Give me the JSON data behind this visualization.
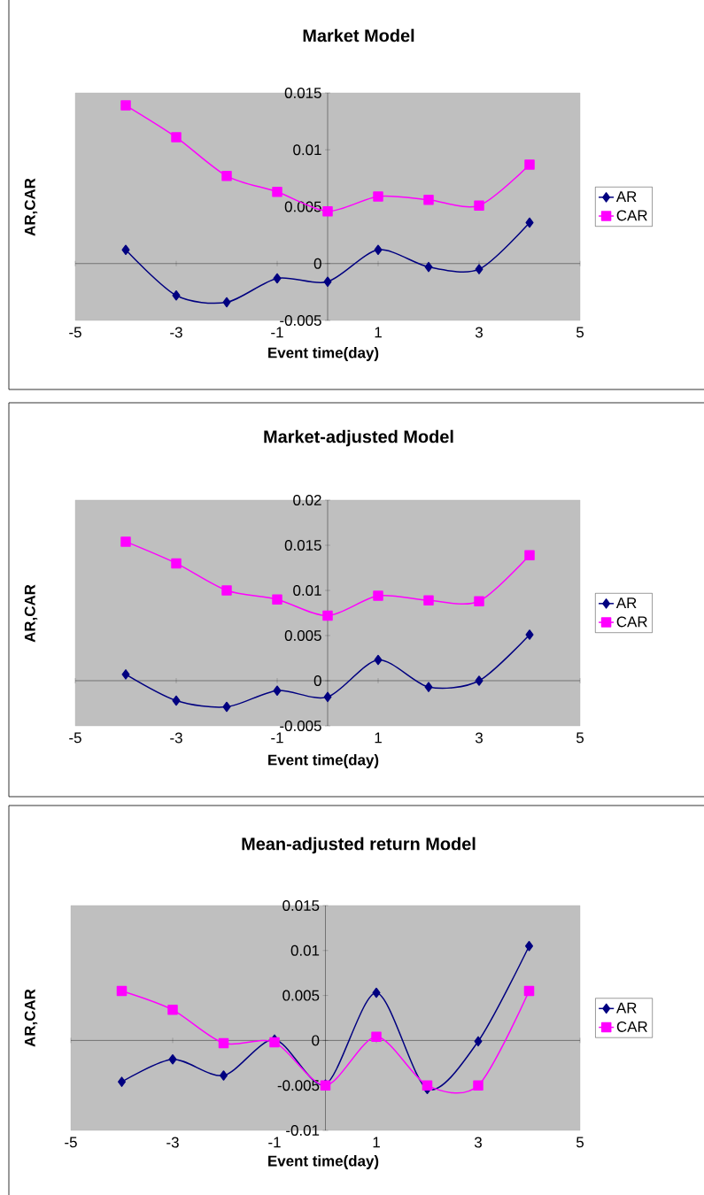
{
  "chart_data": [
    {
      "type": "line",
      "title": "Market Model",
      "xlabel": "Event time(day)",
      "ylabel": "AR,CAR",
      "x": [
        -4,
        -3,
        -2,
        -1,
        0,
        1,
        2,
        3,
        4
      ],
      "xlim": [
        -5,
        5
      ],
      "xticks": [
        -5,
        -3,
        -1,
        1,
        3,
        5
      ],
      "ylim": [
        -0.005,
        0.015
      ],
      "yticks": [
        -0.005,
        0,
        0.005,
        0.01,
        0.015
      ],
      "legend": "right",
      "series": [
        {
          "name": "AR",
          "color": "#000080",
          "marker": "diamond",
          "values": [
            0.0012,
            -0.0028,
            -0.0034,
            -0.0013,
            -0.0016,
            0.0012,
            -0.0003,
            -0.0005,
            0.0036
          ]
        },
        {
          "name": "CAR",
          "color": "#ff00ff",
          "marker": "square",
          "values": [
            0.0139,
            0.0111,
            0.0077,
            0.0063,
            0.0046,
            0.0059,
            0.0056,
            0.0051,
            0.0087
          ]
        }
      ]
    },
    {
      "type": "line",
      "title": "Market-adjusted Model",
      "xlabel": "Event time(day)",
      "ylabel": "AR,CAR",
      "x": [
        -4,
        -3,
        -2,
        -1,
        0,
        1,
        2,
        3,
        4
      ],
      "xlim": [
        -5,
        5
      ],
      "xticks": [
        -5,
        -3,
        -1,
        1,
        3,
        5
      ],
      "ylim": [
        -0.005,
        0.02
      ],
      "yticks": [
        -0.005,
        0,
        0.005,
        0.01,
        0.015,
        0.02
      ],
      "legend": "right",
      "series": [
        {
          "name": "AR",
          "color": "#000080",
          "marker": "diamond",
          "values": [
            0.0007,
            -0.0022,
            -0.0029,
            -0.0011,
            -0.0018,
            0.0023,
            -0.0007,
            0,
            0.0051
          ]
        },
        {
          "name": "CAR",
          "color": "#ff00ff",
          "marker": "square",
          "values": [
            0.0154,
            0.013,
            0.01,
            0.009,
            0.0072,
            0.0094,
            0.0089,
            0.0088,
            0.0139
          ]
        }
      ]
    },
    {
      "type": "line",
      "title": "Mean-adjusted return Model",
      "xlabel": "Event time(day)",
      "ylabel": "AR,CAR",
      "x": [
        -4,
        -3,
        -2,
        -1,
        0,
        1,
        2,
        3,
        4
      ],
      "xlim": [
        -5,
        5
      ],
      "xticks": [
        -5,
        -3,
        -1,
        1,
        3,
        5
      ],
      "ylim": [
        -0.01,
        0.015
      ],
      "yticks": [
        -0.01,
        -0.005,
        0,
        0.005,
        0.01,
        0.015
      ],
      "legend": "right",
      "series": [
        {
          "name": "AR",
          "color": "#000080",
          "marker": "diamond",
          "values": [
            -0.0046,
            -0.0021,
            -0.0039,
            0.0001,
            -0.0049,
            0.0053,
            -0.0054,
            -0.0001,
            0.0105
          ]
        },
        {
          "name": "CAR",
          "color": "#ff00ff",
          "marker": "square",
          "values": [
            0.0055,
            0.0034,
            -0.0003,
            -0.0002,
            -0.005,
            0.0004,
            -0.005,
            -0.005,
            0.0055
          ]
        }
      ]
    }
  ]
}
